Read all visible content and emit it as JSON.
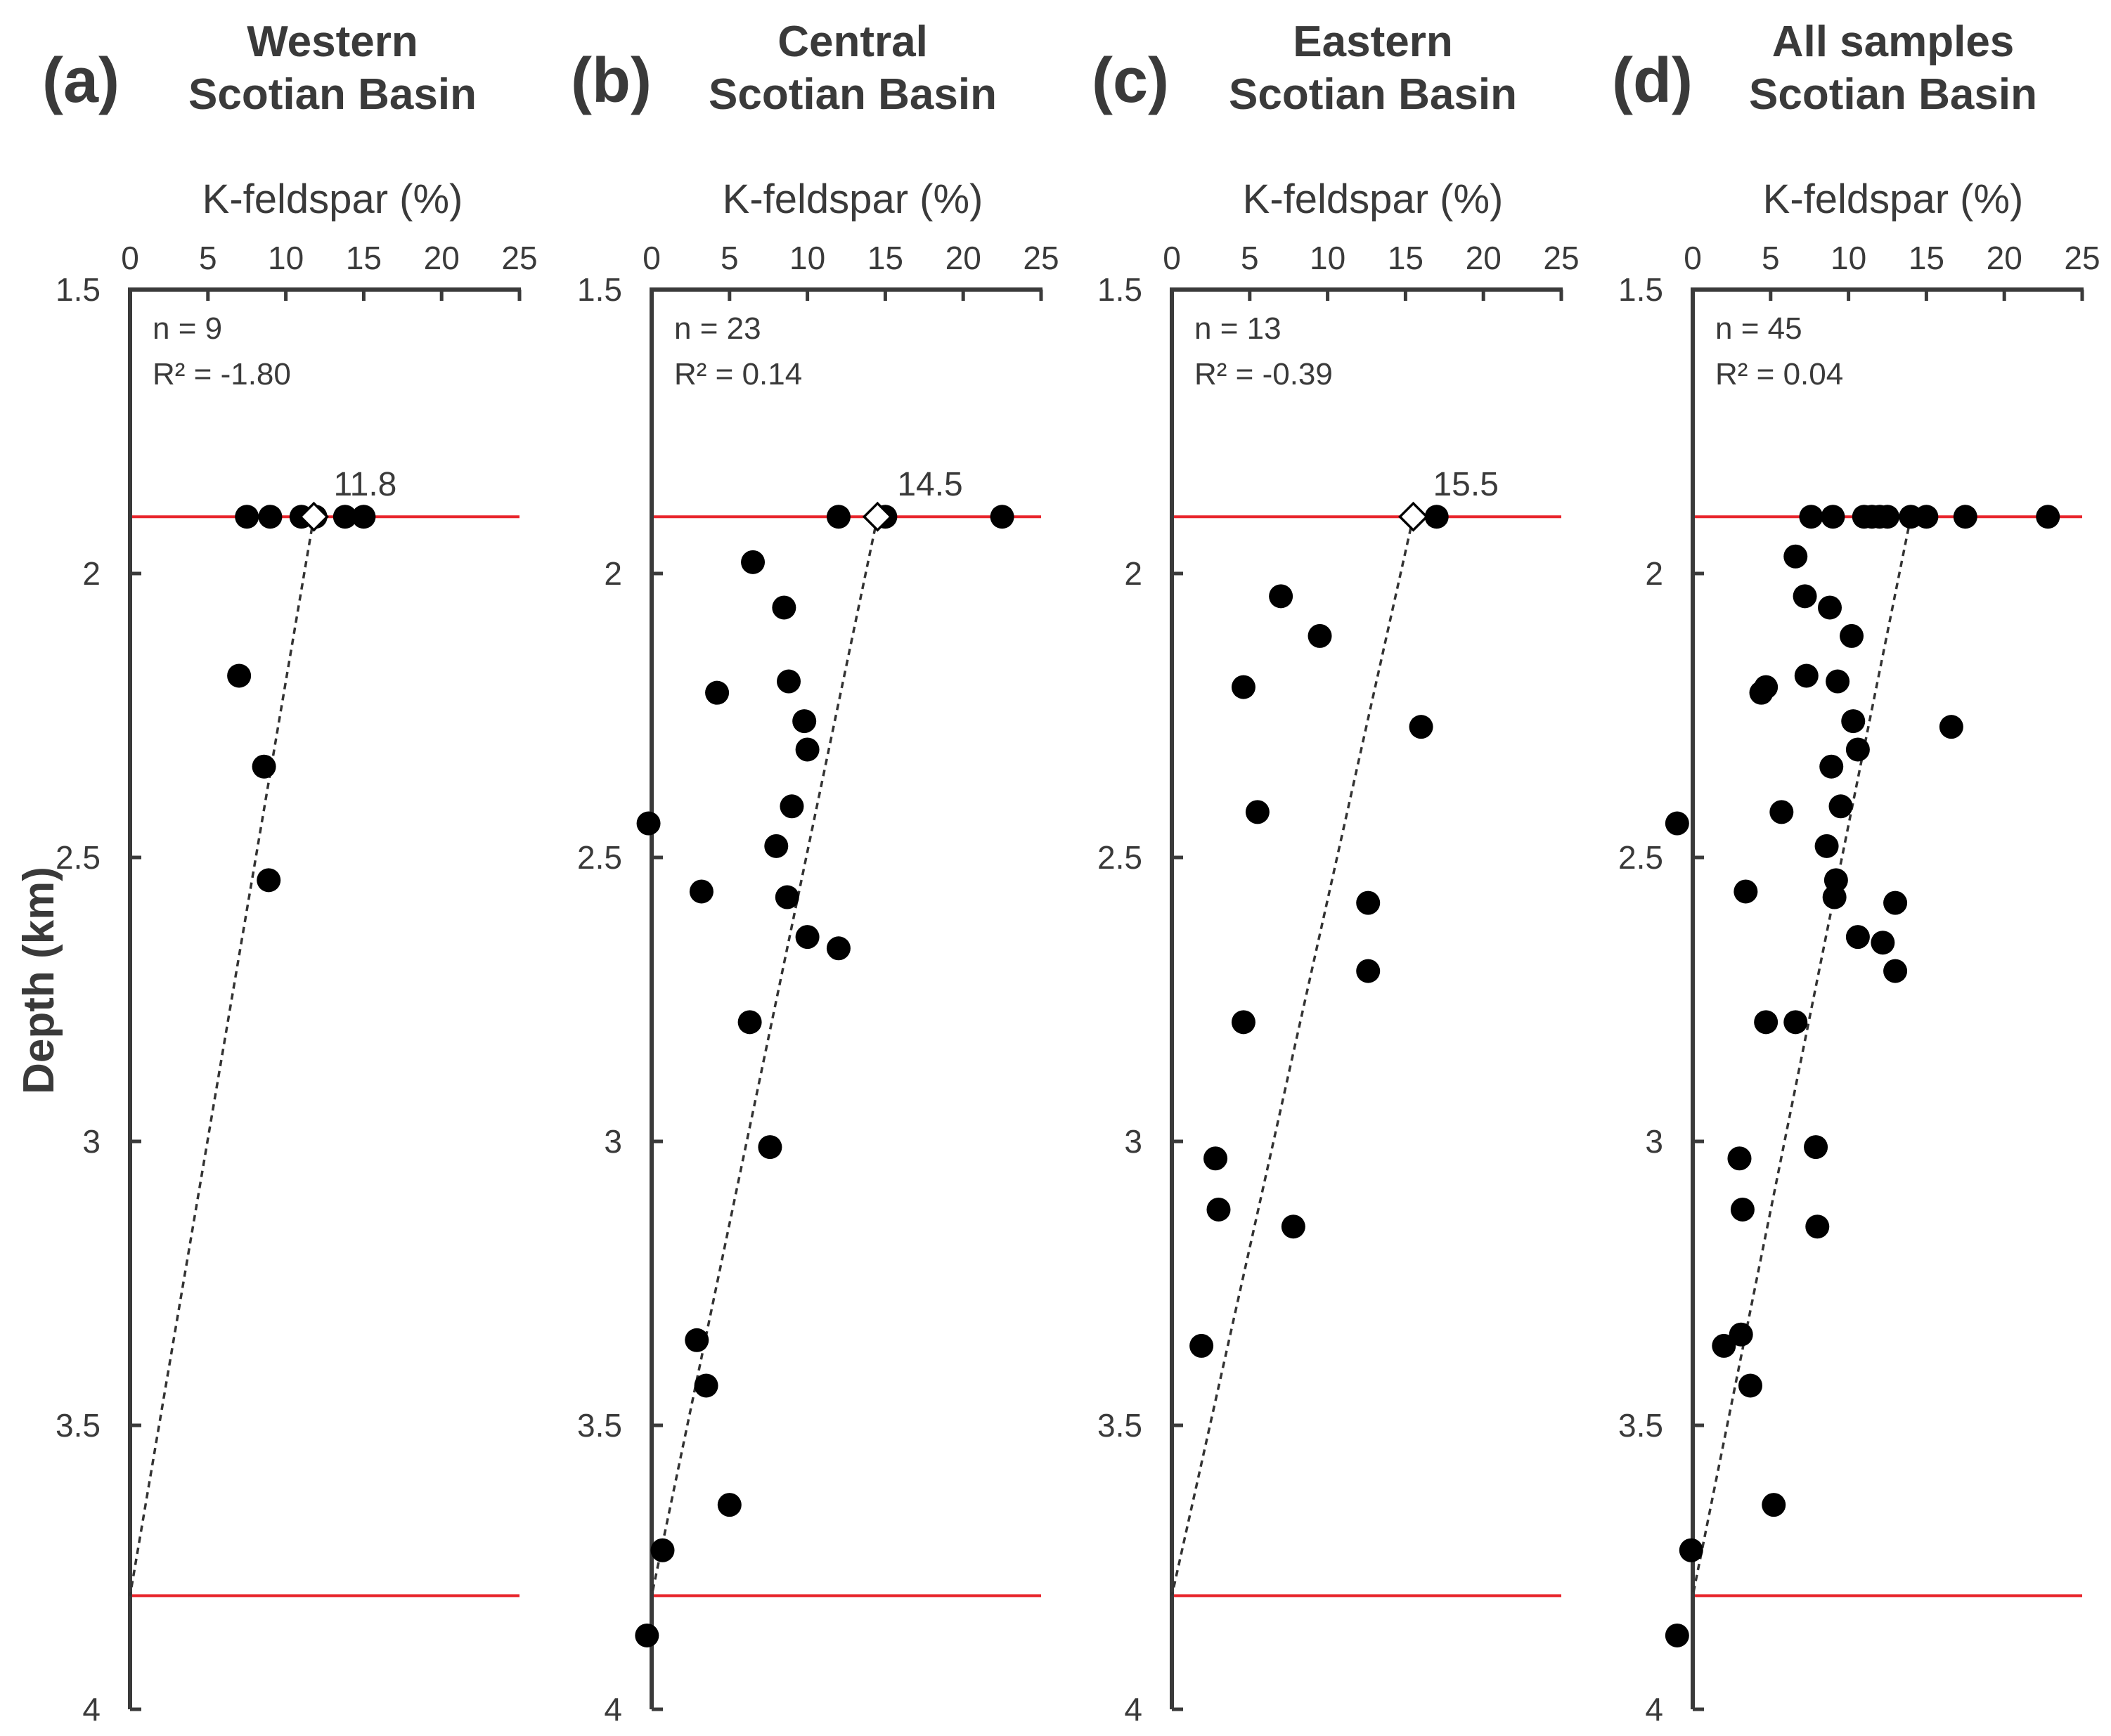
{
  "figure": {
    "ylabel": "Depth (km)",
    "colors": {
      "axis": "#3a3a3a",
      "reference_line": "#e8262d",
      "point": "#000000",
      "trend": "#333333",
      "diamond_fill": "#ffffff"
    }
  },
  "chart_data": [
    {
      "type": "scatter",
      "panel_letter": "(a)",
      "title": [
        "Western",
        "Scotian Basin"
      ],
      "xlabel": "K-feldspar (%)",
      "ylabel": "Depth (km)",
      "xlim": [
        0,
        25
      ],
      "ylim": [
        1.5,
        4
      ],
      "y_inverted": true,
      "xticks": [
        "0",
        "5",
        "10",
        "15",
        "20",
        "25"
      ],
      "yticks": [
        "1.5",
        "2",
        "2.5",
        "3",
        "3.5",
        "4"
      ],
      "annotations": [
        "n = 9",
        "R² = -1.80"
      ],
      "reference_depths": [
        1.9,
        3.8
      ],
      "trend_line": {
        "x": [
          11.8,
          0
        ],
        "y": [
          1.9,
          3.8
        ]
      },
      "surface_value": 11.8,
      "surface_label": "11.8",
      "points": [
        {
          "x": 7.5,
          "y": 1.9
        },
        {
          "x": 9.0,
          "y": 1.9
        },
        {
          "x": 11.0,
          "y": 1.9
        },
        {
          "x": 13.8,
          "y": 1.9
        },
        {
          "x": 15.0,
          "y": 1.9
        },
        {
          "x": 7.0,
          "y": 2.18
        },
        {
          "x": 8.6,
          "y": 2.34
        },
        {
          "x": 8.9,
          "y": 2.54
        },
        {
          "x": 11.9,
          "y": 1.9
        }
      ]
    },
    {
      "type": "scatter",
      "panel_letter": "(b)",
      "title": [
        "Central",
        "Scotian Basin"
      ],
      "xlabel": "K-feldspar (%)",
      "ylabel": "",
      "xlim": [
        0,
        25
      ],
      "ylim": [
        1.5,
        4
      ],
      "y_inverted": true,
      "xticks": [
        "0",
        "5",
        "10",
        "15",
        "20",
        "25"
      ],
      "yticks": [
        "1.5",
        "2",
        "2.5",
        "3",
        "3.5",
        "4"
      ],
      "annotations": [
        "n = 23",
        "R² = 0.14"
      ],
      "reference_depths": [
        1.9,
        3.8
      ],
      "trend_line": {
        "x": [
          14.5,
          0
        ],
        "y": [
          1.9,
          3.8
        ]
      },
      "surface_value": 14.5,
      "surface_label": "14.5",
      "points": [
        {
          "x": 12.0,
          "y": 1.9
        },
        {
          "x": 15.0,
          "y": 1.9
        },
        {
          "x": 22.5,
          "y": 1.9
        },
        {
          "x": 6.5,
          "y": 1.98
        },
        {
          "x": 8.5,
          "y": 2.06
        },
        {
          "x": 8.8,
          "y": 2.19
        },
        {
          "x": 4.2,
          "y": 2.21
        },
        {
          "x": 9.8,
          "y": 2.26
        },
        {
          "x": 10.0,
          "y": 2.31
        },
        {
          "x": 9.0,
          "y": 2.41
        },
        {
          "x": -0.2,
          "y": 2.44
        },
        {
          "x": 8.0,
          "y": 2.48
        },
        {
          "x": 3.2,
          "y": 2.56
        },
        {
          "x": 8.7,
          "y": 2.57
        },
        {
          "x": 10.0,
          "y": 2.64
        },
        {
          "x": 12.0,
          "y": 2.66
        },
        {
          "x": 6.3,
          "y": 2.79
        },
        {
          "x": 7.6,
          "y": 3.01
        },
        {
          "x": 2.9,
          "y": 3.35
        },
        {
          "x": 3.5,
          "y": 3.43
        },
        {
          "x": 5.0,
          "y": 3.64
        },
        {
          "x": 0.7,
          "y": 3.72
        },
        {
          "x": -0.3,
          "y": 3.87
        }
      ]
    },
    {
      "type": "scatter",
      "panel_letter": "(c)",
      "title": [
        "Eastern",
        "Scotian Basin"
      ],
      "xlabel": "K-feldspar (%)",
      "ylabel": "",
      "xlim": [
        0,
        25
      ],
      "ylim": [
        1.5,
        4
      ],
      "y_inverted": true,
      "xticks": [
        "0",
        "5",
        "10",
        "15",
        "20",
        "25"
      ],
      "yticks": [
        "1.5",
        "2",
        "2.5",
        "3",
        "3.5",
        "4"
      ],
      "annotations": [
        "n = 13",
        "R² = -0.39"
      ],
      "reference_depths": [
        1.9,
        3.8
      ],
      "trend_line": {
        "x": [
          15.5,
          0
        ],
        "y": [
          1.9,
          3.8
        ]
      },
      "surface_value": 15.5,
      "surface_label": "15.5",
      "points": [
        {
          "x": 17.0,
          "y": 1.9
        },
        {
          "x": 7.0,
          "y": 2.04
        },
        {
          "x": 9.5,
          "y": 2.11
        },
        {
          "x": 4.6,
          "y": 2.2
        },
        {
          "x": 16.0,
          "y": 2.27
        },
        {
          "x": 5.5,
          "y": 2.42
        },
        {
          "x": 12.6,
          "y": 2.58
        },
        {
          "x": 12.6,
          "y": 2.7
        },
        {
          "x": 4.6,
          "y": 2.79
        },
        {
          "x": 2.8,
          "y": 3.03
        },
        {
          "x": 3.0,
          "y": 3.12
        },
        {
          "x": 7.8,
          "y": 3.15
        },
        {
          "x": 1.9,
          "y": 3.36
        }
      ]
    },
    {
      "type": "scatter",
      "panel_letter": "(d)",
      "title": [
        "All samples",
        "Scotian Basin"
      ],
      "xlabel": "K-feldspar (%)",
      "ylabel": "",
      "xlim": [
        0,
        25
      ],
      "ylim": [
        1.5,
        4
      ],
      "y_inverted": true,
      "xticks": [
        "0",
        "5",
        "10",
        "15",
        "20",
        "25"
      ],
      "yticks": [
        "1.5",
        "2",
        "2.5",
        "3",
        "3.5",
        "4"
      ],
      "annotations": [
        "n = 45",
        "R² = 0.04"
      ],
      "reference_depths": [
        1.9,
        3.8
      ],
      "trend_line": {
        "x": [
          14.0,
          0
        ],
        "y": [
          1.9,
          3.8
        ]
      },
      "surface_value": null,
      "surface_label": "",
      "points": [
        {
          "x": 7.6,
          "y": 1.9
        },
        {
          "x": 9.0,
          "y": 1.9
        },
        {
          "x": 11.0,
          "y": 1.9
        },
        {
          "x": 11.5,
          "y": 1.9
        },
        {
          "x": 12.0,
          "y": 1.9
        },
        {
          "x": 14.0,
          "y": 1.9
        },
        {
          "x": 15.0,
          "y": 1.9
        },
        {
          "x": 17.5,
          "y": 1.9
        },
        {
          "x": 22.8,
          "y": 1.9
        },
        {
          "x": 6.6,
          "y": 1.97
        },
        {
          "x": 7.2,
          "y": 2.04
        },
        {
          "x": 8.8,
          "y": 2.06
        },
        {
          "x": 10.2,
          "y": 2.11
        },
        {
          "x": 7.3,
          "y": 2.18
        },
        {
          "x": 9.3,
          "y": 2.19
        },
        {
          "x": 4.7,
          "y": 2.2
        },
        {
          "x": 4.4,
          "y": 2.21
        },
        {
          "x": 10.3,
          "y": 2.26
        },
        {
          "x": 16.6,
          "y": 2.27
        },
        {
          "x": 10.6,
          "y": 2.31
        },
        {
          "x": 8.9,
          "y": 2.34
        },
        {
          "x": 9.5,
          "y": 2.41
        },
        {
          "x": 5.7,
          "y": 2.42
        },
        {
          "x": -1.0,
          "y": 2.44
        },
        {
          "x": 8.6,
          "y": 2.48
        },
        {
          "x": 9.2,
          "y": 2.54
        },
        {
          "x": 3.4,
          "y": 2.56
        },
        {
          "x": 9.1,
          "y": 2.57
        },
        {
          "x": 13.0,
          "y": 2.58
        },
        {
          "x": 10.6,
          "y": 2.64
        },
        {
          "x": 12.2,
          "y": 2.65
        },
        {
          "x": 13.0,
          "y": 2.7
        },
        {
          "x": 4.7,
          "y": 2.79
        },
        {
          "x": 6.6,
          "y": 2.79
        },
        {
          "x": 7.9,
          "y": 3.01
        },
        {
          "x": 3.0,
          "y": 3.03
        },
        {
          "x": 3.2,
          "y": 3.12
        },
        {
          "x": 8.0,
          "y": 3.15
        },
        {
          "x": 3.1,
          "y": 3.34
        },
        {
          "x": 2.0,
          "y": 3.36
        },
        {
          "x": 3.7,
          "y": 3.43
        },
        {
          "x": 5.2,
          "y": 3.64
        },
        {
          "x": -0.1,
          "y": 3.72
        },
        {
          "x": -1.0,
          "y": 3.87
        },
        {
          "x": 12.5,
          "y": 1.9
        }
      ]
    }
  ]
}
